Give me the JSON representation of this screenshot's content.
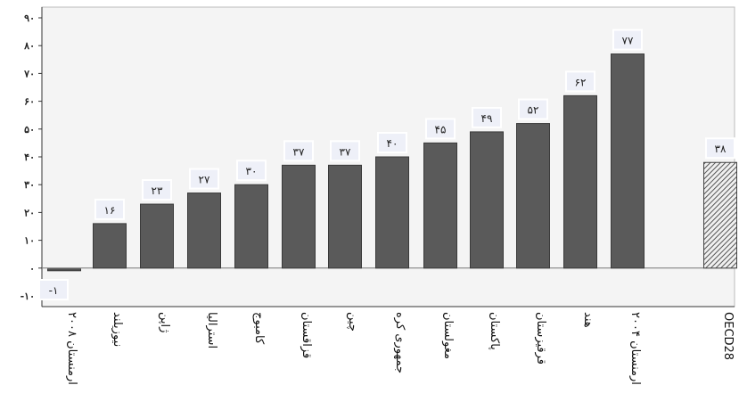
{
  "chart_data": {
    "type": "bar",
    "ylim": [
      -10,
      90
    ],
    "yticks": [
      -10,
      0,
      10,
      20,
      30,
      40,
      50,
      60,
      70,
      80,
      90
    ],
    "ytick_labels": [
      "-۱۰",
      "۰",
      "۱۰",
      "۲۰",
      "۳۰",
      "۴۰",
      "۵۰",
      "۶۰",
      "۷۰",
      "۸۰",
      "۹۰"
    ],
    "grid": false,
    "categories": [
      "ارمنستان ۲۰۰۸",
      "نیوزیلند",
      "ژاپن",
      "استرالیا",
      "کامبوج",
      "قزاقستان",
      "چین",
      "جمهوری کره",
      "مغولستان",
      "پاکستان",
      "قرقیزستان",
      "هند",
      "ارمنستان ۲۰۰۴",
      "OECD28"
    ],
    "values": [
      -1,
      16,
      23,
      27,
      30,
      37,
      37,
      40,
      45,
      49,
      52,
      62,
      77,
      38
    ],
    "data_labels": [
      "-۱",
      "۱۶",
      "۲۳",
      "۲۷",
      "۳۰",
      "۳۷",
      "۳۷",
      "۴۰",
      "۴۵",
      "۴۹",
      "۵۲",
      "۶۲",
      "۷۷",
      "۳۸"
    ],
    "colors": {
      "bar": "#5a5a5a",
      "bar_edge": "#3a3a3a",
      "oecd_hatch": "#555555",
      "label_box": "#eef0f8",
      "axis": "#333333"
    }
  }
}
